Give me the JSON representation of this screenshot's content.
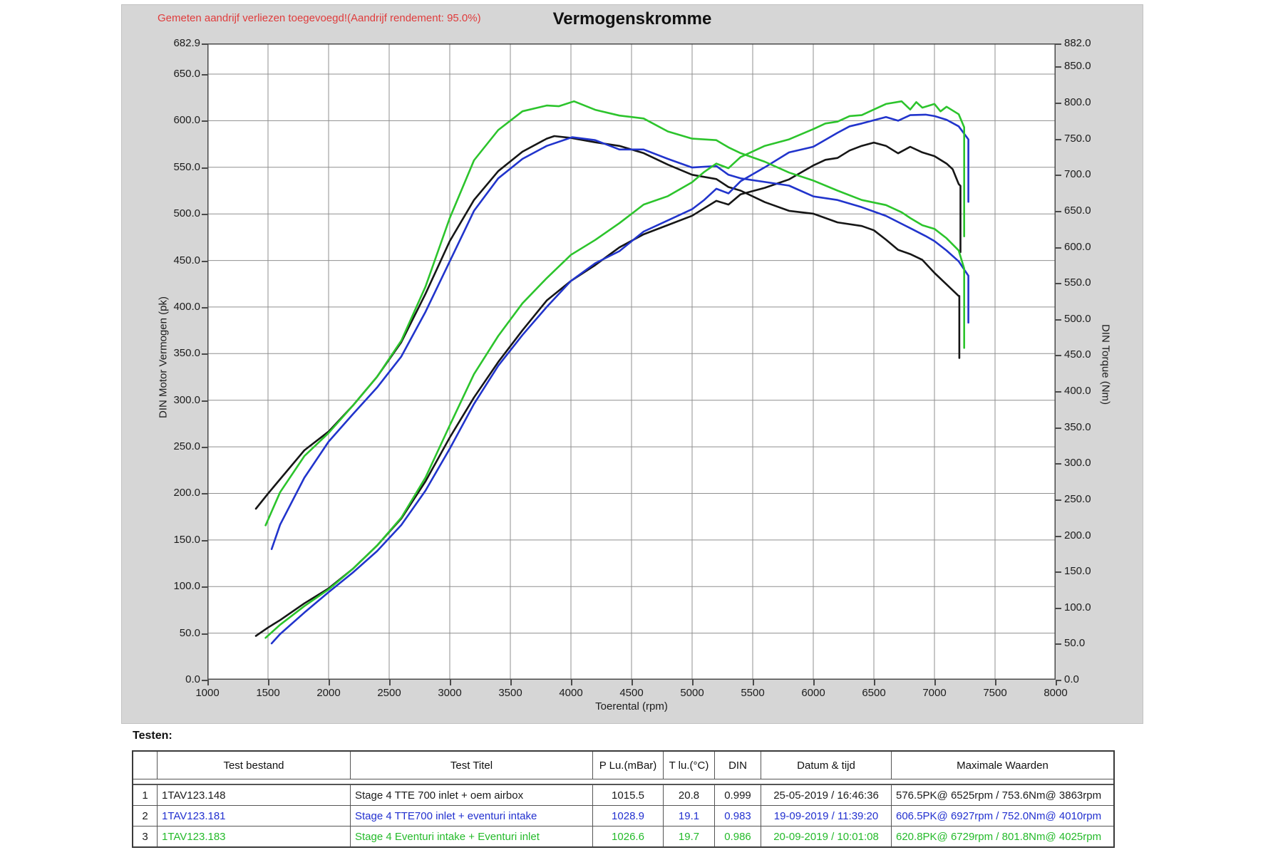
{
  "table": {
    "caption": "Testen:",
    "columns": [
      "",
      "Test bestand",
      "Test Titel",
      "P Lu.(mBar)",
      "T lu.(°C)",
      "DIN",
      "Datum & tijd",
      "Maximale Waarden"
    ],
    "rows": [
      {
        "color": "#1a1a1a",
        "cells": [
          "1",
          "1TAV123.148",
          "Stage 4 TTE 700  inlet + oem airbox",
          "1015.5",
          "20.8",
          "0.999",
          "25-05-2019 / 16:46:36",
          "576.5PK@ 6525rpm / 753.6Nm@ 3863rpm"
        ]
      },
      {
        "color": "#2230cf",
        "cells": [
          "2",
          "1TAV123.181",
          "Stage 4 TTE700 inlet + eventuri intake",
          "1028.9",
          "19.1",
          "0.983",
          "19-09-2019 / 11:39:20",
          "606.5PK@ 6927rpm / 752.0Nm@ 4010rpm"
        ]
      },
      {
        "color": "#24ba2a",
        "cells": [
          "3",
          "1TAV123.183",
          "Stage 4 Eventuri intake + Eventuri inlet",
          "1026.6",
          "19.7",
          "0.986",
          "20-09-2019 / 10:01:08",
          "620.8PK@ 6729rpm / 801.8Nm@ 4025rpm"
        ]
      }
    ]
  },
  "chart_data": {
    "type": "line",
    "title": "Vermogenskromme",
    "annotation": "Gemeten aandrijf verliezen toegevoegd!(Aandrijf rendement: 95.0%)",
    "xlabel": "Toerental (rpm)",
    "ylabel_left": "DIN Motor Vermogen (pk)",
    "ylabel_right": "DIN Torque (Nm)",
    "x_range": [
      1000,
      8000
    ],
    "power_range": [
      0,
      682.9
    ],
    "torque_range": [
      0,
      882.0
    ],
    "x_ticks": [
      1000,
      1500,
      2000,
      2500,
      3000,
      3500,
      4000,
      4500,
      5000,
      5500,
      6000,
      6500,
      7000,
      7500,
      8000
    ],
    "power_ticks": [
      682.9,
      650,
      600,
      550,
      500,
      450,
      400,
      350,
      300,
      250,
      200,
      150,
      100,
      50,
      0
    ],
    "torque_ticks": [
      882,
      850,
      800,
      750,
      700,
      650,
      600,
      550,
      500,
      450,
      400,
      350,
      300,
      250,
      200,
      150,
      100,
      50,
      0
    ],
    "grid": true,
    "grid_color": "#8f8f8f",
    "legend_position": "none",
    "series": [
      {
        "run": 1,
        "name": "Stage 4 TTE 700 inlet + oem airbox - power",
        "axis": "power",
        "color": "#161616",
        "points": [
          [
            1400,
            47
          ],
          [
            1500,
            56
          ],
          [
            1600,
            64
          ],
          [
            1800,
            82
          ],
          [
            2000,
            98
          ],
          [
            2200,
            119
          ],
          [
            2400,
            144
          ],
          [
            2600,
            173
          ],
          [
            2800,
            213
          ],
          [
            3000,
            260
          ],
          [
            3200,
            303
          ],
          [
            3400,
            341
          ],
          [
            3600,
            375
          ],
          [
            3800,
            407
          ],
          [
            4000,
            428
          ],
          [
            4200,
            445
          ],
          [
            4400,
            464
          ],
          [
            4600,
            478
          ],
          [
            4800,
            488
          ],
          [
            5000,
            498
          ],
          [
            5100,
            506
          ],
          [
            5200,
            514
          ],
          [
            5300,
            510
          ],
          [
            5400,
            521
          ],
          [
            5600,
            528
          ],
          [
            5800,
            537
          ],
          [
            6000,
            552
          ],
          [
            6100,
            558
          ],
          [
            6200,
            560
          ],
          [
            6300,
            568
          ],
          [
            6400,
            573
          ],
          [
            6500,
            576.5
          ],
          [
            6600,
            573
          ],
          [
            6700,
            565
          ],
          [
            6800,
            572
          ],
          [
            6900,
            566
          ],
          [
            7000,
            562
          ],
          [
            7100,
            554
          ],
          [
            7150,
            548
          ],
          [
            7200,
            532
          ],
          [
            7215,
            530
          ],
          [
            7215,
            459
          ]
        ]
      },
      {
        "run": 1,
        "name": "Stage 4 TTE 700 inlet + oem airbox - torque",
        "axis": "torque",
        "color": "#161616",
        "points": [
          [
            1400,
            237
          ],
          [
            1500,
            258
          ],
          [
            1600,
            278
          ],
          [
            1800,
            318
          ],
          [
            2000,
            344
          ],
          [
            2200,
            380
          ],
          [
            2400,
            420
          ],
          [
            2600,
            468
          ],
          [
            2800,
            535
          ],
          [
            3000,
            608
          ],
          [
            3200,
            665
          ],
          [
            3400,
            705
          ],
          [
            3600,
            732
          ],
          [
            3800,
            750
          ],
          [
            3863,
            753.6
          ],
          [
            4000,
            751
          ],
          [
            4200,
            745
          ],
          [
            4400,
            740
          ],
          [
            4600,
            730
          ],
          [
            4800,
            714
          ],
          [
            5000,
            700
          ],
          [
            5100,
            697
          ],
          [
            5200,
            694
          ],
          [
            5300,
            683
          ],
          [
            5400,
            678
          ],
          [
            5600,
            662
          ],
          [
            5800,
            650
          ],
          [
            6000,
            646
          ],
          [
            6100,
            640
          ],
          [
            6200,
            634
          ],
          [
            6400,
            629
          ],
          [
            6500,
            623
          ],
          [
            6600,
            610
          ],
          [
            6700,
            596
          ],
          [
            6800,
            590
          ],
          [
            6900,
            582
          ],
          [
            7000,
            564
          ],
          [
            7100,
            548
          ],
          [
            7200,
            532
          ],
          [
            7205,
            532
          ],
          [
            7205,
            446
          ]
        ]
      },
      {
        "run": 2,
        "name": "Stage 4 TTE700 inlet + eventuri intake - power",
        "axis": "power",
        "color": "#2134cc",
        "points": [
          [
            1530,
            39
          ],
          [
            1600,
            49
          ],
          [
            1800,
            72
          ],
          [
            2000,
            94
          ],
          [
            2200,
            115
          ],
          [
            2400,
            138
          ],
          [
            2600,
            166
          ],
          [
            2800,
            203
          ],
          [
            3000,
            248
          ],
          [
            3200,
            296
          ],
          [
            3400,
            337
          ],
          [
            3600,
            370
          ],
          [
            3800,
            400
          ],
          [
            4000,
            428
          ],
          [
            4200,
            447
          ],
          [
            4400,
            460
          ],
          [
            4600,
            481
          ],
          [
            4800,
            493
          ],
          [
            5000,
            505
          ],
          [
            5100,
            515
          ],
          [
            5200,
            527
          ],
          [
            5300,
            522
          ],
          [
            5400,
            535
          ],
          [
            5600,
            550
          ],
          [
            5800,
            566
          ],
          [
            6000,
            572
          ],
          [
            6200,
            587
          ],
          [
            6300,
            594
          ],
          [
            6400,
            597
          ],
          [
            6600,
            604
          ],
          [
            6700,
            600
          ],
          [
            6800,
            606
          ],
          [
            6927,
            606.5
          ],
          [
            7000,
            605
          ],
          [
            7100,
            601
          ],
          [
            7200,
            594
          ],
          [
            7280,
            580
          ],
          [
            7280,
            513
          ]
        ]
      },
      {
        "run": 2,
        "name": "Stage 4 TTE700 inlet + eventuri intake - torque",
        "axis": "torque",
        "color": "#2134cc",
        "points": [
          [
            1530,
            181
          ],
          [
            1600,
            215
          ],
          [
            1800,
            280
          ],
          [
            2000,
            330
          ],
          [
            2200,
            368
          ],
          [
            2400,
            405
          ],
          [
            2600,
            448
          ],
          [
            2800,
            510
          ],
          [
            3000,
            580
          ],
          [
            3200,
            650
          ],
          [
            3400,
            695
          ],
          [
            3600,
            722
          ],
          [
            3800,
            740
          ],
          [
            4010,
            752
          ],
          [
            4200,
            748
          ],
          [
            4400,
            735
          ],
          [
            4600,
            735
          ],
          [
            4800,
            722
          ],
          [
            5000,
            710
          ],
          [
            5200,
            712
          ],
          [
            5300,
            700
          ],
          [
            5400,
            695
          ],
          [
            5600,
            690
          ],
          [
            5800,
            685
          ],
          [
            6000,
            670
          ],
          [
            6200,
            665
          ],
          [
            6400,
            655
          ],
          [
            6600,
            643
          ],
          [
            6800,
            626
          ],
          [
            6927,
            615
          ],
          [
            7000,
            608
          ],
          [
            7100,
            595
          ],
          [
            7200,
            580
          ],
          [
            7280,
            560
          ],
          [
            7280,
            495
          ]
        ]
      },
      {
        "run": 3,
        "name": "Stage 4 Eventuri intake + Eventuri inlet - power",
        "axis": "power",
        "color": "#2cc42c",
        "points": [
          [
            1480,
            45
          ],
          [
            1600,
            59
          ],
          [
            1800,
            79
          ],
          [
            2000,
            97
          ],
          [
            2200,
            119
          ],
          [
            2400,
            144
          ],
          [
            2600,
            174
          ],
          [
            2800,
            217
          ],
          [
            3000,
            273
          ],
          [
            3200,
            328
          ],
          [
            3400,
            369
          ],
          [
            3600,
            404
          ],
          [
            3800,
            431
          ],
          [
            4000,
            456
          ],
          [
            4200,
            472
          ],
          [
            4400,
            490
          ],
          [
            4600,
            510
          ],
          [
            4800,
            519
          ],
          [
            5000,
            534
          ],
          [
            5100,
            545
          ],
          [
            5200,
            554
          ],
          [
            5300,
            549
          ],
          [
            5400,
            561
          ],
          [
            5600,
            573
          ],
          [
            5800,
            580
          ],
          [
            6000,
            591
          ],
          [
            6100,
            597
          ],
          [
            6200,
            599
          ],
          [
            6300,
            605
          ],
          [
            6400,
            606
          ],
          [
            6500,
            612
          ],
          [
            6600,
            618
          ],
          [
            6729,
            620.8
          ],
          [
            6800,
            612
          ],
          [
            6850,
            620
          ],
          [
            6900,
            614
          ],
          [
            7000,
            618
          ],
          [
            7050,
            610
          ],
          [
            7100,
            615
          ],
          [
            7200,
            607
          ],
          [
            7245,
            593
          ],
          [
            7245,
            476
          ]
        ]
      },
      {
        "run": 3,
        "name": "Stage 4 Eventuri intake + Eventuri inlet - torque",
        "axis": "torque",
        "color": "#2cc42c",
        "points": [
          [
            1480,
            214
          ],
          [
            1600,
            260
          ],
          [
            1800,
            310
          ],
          [
            2000,
            342
          ],
          [
            2200,
            380
          ],
          [
            2400,
            420
          ],
          [
            2600,
            470
          ],
          [
            2800,
            545
          ],
          [
            3000,
            640
          ],
          [
            3200,
            720
          ],
          [
            3400,
            762
          ],
          [
            3600,
            788
          ],
          [
            3800,
            796
          ],
          [
            3900,
            795
          ],
          [
            4025,
            801.8
          ],
          [
            4200,
            790
          ],
          [
            4400,
            782
          ],
          [
            4600,
            778
          ],
          [
            4800,
            760
          ],
          [
            5000,
            750
          ],
          [
            5200,
            748
          ],
          [
            5300,
            738
          ],
          [
            5400,
            730
          ],
          [
            5600,
            718
          ],
          [
            5800,
            703
          ],
          [
            6000,
            692
          ],
          [
            6200,
            678
          ],
          [
            6400,
            665
          ],
          [
            6600,
            658
          ],
          [
            6729,
            648
          ],
          [
            6800,
            640
          ],
          [
            6900,
            630
          ],
          [
            7000,
            625
          ],
          [
            7100,
            612
          ],
          [
            7200,
            595
          ],
          [
            7245,
            570
          ],
          [
            7245,
            460
          ]
        ]
      }
    ]
  }
}
